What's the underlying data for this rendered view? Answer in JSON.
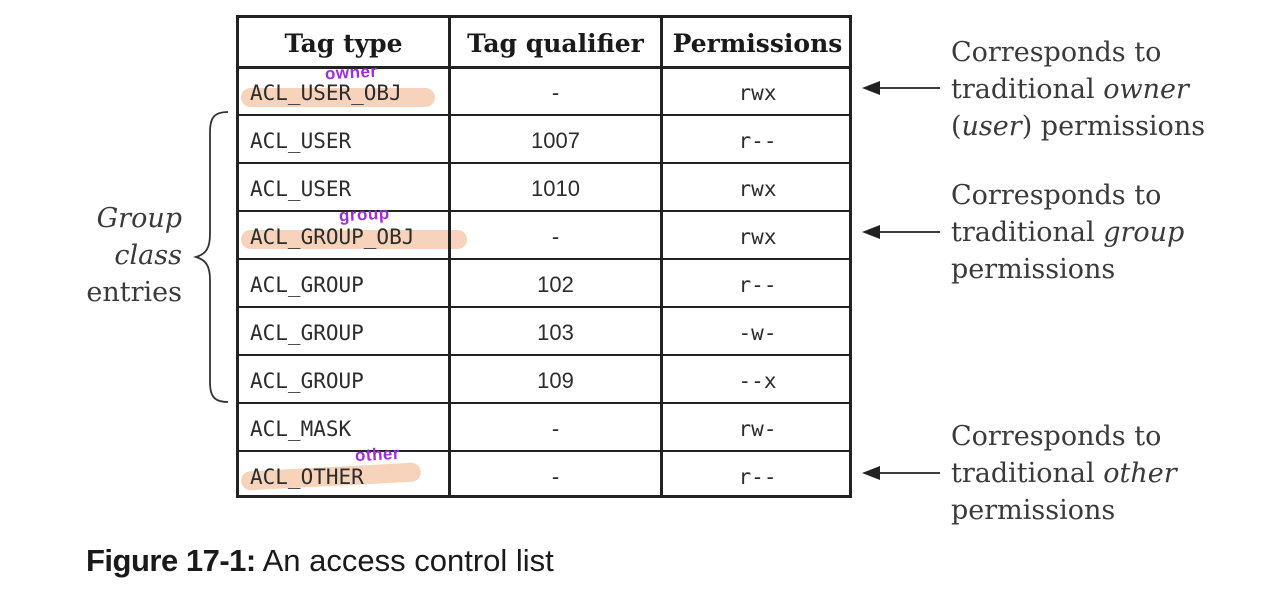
{
  "table": {
    "headers": {
      "tag_type": "Tag type",
      "tag_qualifier": "Tag qualifier",
      "permissions": "Permissions"
    },
    "rows": [
      {
        "tag": "ACL_USER_OBJ",
        "qualifier": "-",
        "perm": "rwx",
        "annotation": "owner"
      },
      {
        "tag": "ACL_USER",
        "qualifier": "1007",
        "perm": "r--"
      },
      {
        "tag": "ACL_USER",
        "qualifier": "1010",
        "perm": "rwx"
      },
      {
        "tag": "ACL_GROUP_OBJ",
        "qualifier": "-",
        "perm": "rwx",
        "annotation": "group"
      },
      {
        "tag": "ACL_GROUP",
        "qualifier": "102",
        "perm": "r--"
      },
      {
        "tag": "ACL_GROUP",
        "qualifier": "103",
        "perm": "-w-"
      },
      {
        "tag": "ACL_GROUP",
        "qualifier": "109",
        "perm": "--x"
      },
      {
        "tag": "ACL_MASK",
        "qualifier": "-",
        "perm": "rw-"
      },
      {
        "tag": "ACL_OTHER",
        "qualifier": "-",
        "perm": "r--",
        "annotation": "other"
      }
    ]
  },
  "brace_label": {
    "line1": "Group",
    "line2": "class",
    "line3": "entries"
  },
  "notes": {
    "owner": {
      "line1": "Corresponds to",
      "line2_pre": "traditional ",
      "line2_em": "owner",
      "line3_pre": "(",
      "line3_em": "user",
      "line3_post": ") permissions"
    },
    "group": {
      "line1": "Corresponds to",
      "line2_pre": "traditional ",
      "line2_em": "group",
      "line3": "permissions"
    },
    "other": {
      "line1": "Corresponds to",
      "line2_pre": "traditional ",
      "line2_em": "other",
      "line3": "permissions"
    }
  },
  "caption": {
    "label": "Figure 17-1:",
    "text": " An access control list"
  },
  "colors": {
    "highlight": "#f6c4a4",
    "handwriting": "#9b2fd9",
    "rule": "#222222"
  }
}
